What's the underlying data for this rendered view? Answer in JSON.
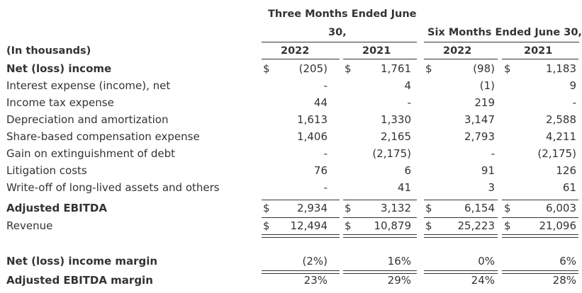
{
  "headers": {
    "three_months_line1": "Three Months Ended June",
    "three_months_line2": "30,",
    "six_months": "Six Months Ended June 30,",
    "units": "(In thousands)",
    "years": [
      "2022",
      "2021",
      "2022",
      "2021"
    ]
  },
  "rows": [
    {
      "label": "Net (loss) income",
      "bold": true,
      "currency": true,
      "values": [
        "(205)",
        "1,761",
        "(98)",
        "1,183"
      ]
    },
    {
      "label": "Interest expense (income), net",
      "bold": false,
      "currency": false,
      "values": [
        "-",
        "4",
        "(1)",
        "9"
      ]
    },
    {
      "label": "Income tax expense",
      "bold": false,
      "currency": false,
      "values": [
        "44",
        "-",
        "219",
        "-"
      ]
    },
    {
      "label": "Depreciation and amortization",
      "bold": false,
      "currency": false,
      "values": [
        "1,613",
        "1,330",
        "3,147",
        "2,588"
      ]
    },
    {
      "label": "Share-based compensation expense",
      "bold": false,
      "currency": false,
      "values": [
        "1,406",
        "2,165",
        "2,793",
        "4,211"
      ]
    },
    {
      "label": "Gain on extinguishment of debt",
      "bold": false,
      "currency": false,
      "values": [
        "-",
        "(2,175)",
        "-",
        "(2,175)"
      ]
    },
    {
      "label": "Litigation costs",
      "bold": false,
      "currency": false,
      "values": [
        "76",
        "6",
        "91",
        "126"
      ]
    },
    {
      "label": "Write-off of long-lived assets and others",
      "bold": false,
      "currency": false,
      "values": [
        "-",
        "41",
        "3",
        "61"
      ]
    },
    {
      "label": "Adjusted EBITDA",
      "bold": true,
      "currency": true,
      "values": [
        "2,934",
        "3,132",
        "6,154",
        "6,003"
      ]
    },
    {
      "label": "Revenue",
      "bold": false,
      "currency": true,
      "values": [
        "12,494",
        "10,879",
        "25,223",
        "21,096"
      ]
    },
    {
      "label": "Net (loss) income margin",
      "bold": true,
      "currency": false,
      "values": [
        "(2%)",
        "16%",
        "0%",
        "6%"
      ]
    },
    {
      "label": "Adjusted EBITDA margin",
      "bold": true,
      "currency": false,
      "values": [
        "23%",
        "29%",
        "24%",
        "28%"
      ]
    }
  ],
  "currency_symbol": "$"
}
